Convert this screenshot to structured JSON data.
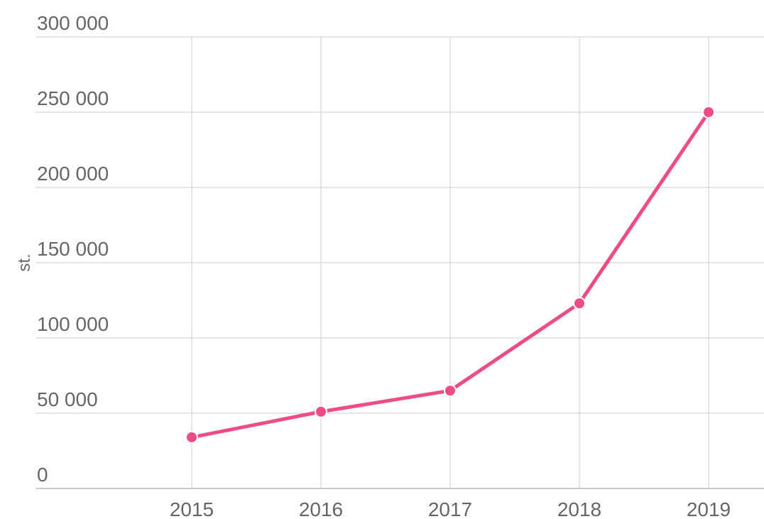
{
  "chart_data": {
    "type": "line",
    "y_label": "st.",
    "categories": [
      "2015",
      "2016",
      "2017",
      "2018",
      "2019"
    ],
    "series": [
      {
        "name": "st.",
        "color": "#ee4c86",
        "values": [
          34000,
          51000,
          65000,
          123000,
          250000
        ]
      }
    ],
    "ylim": [
      0,
      300000
    ],
    "yticks": [
      0,
      {
        "value": 50000,
        "label": "50 000"
      },
      {
        "value": 100000,
        "label": "100 000"
      },
      {
        "value": 150000,
        "label": "150 000"
      },
      {
        "value": 200000,
        "label": "200 000"
      },
      {
        "value": 250000,
        "label": "250 000"
      },
      {
        "value": 300000,
        "label": "300 000"
      }
    ],
    "grid": true
  }
}
